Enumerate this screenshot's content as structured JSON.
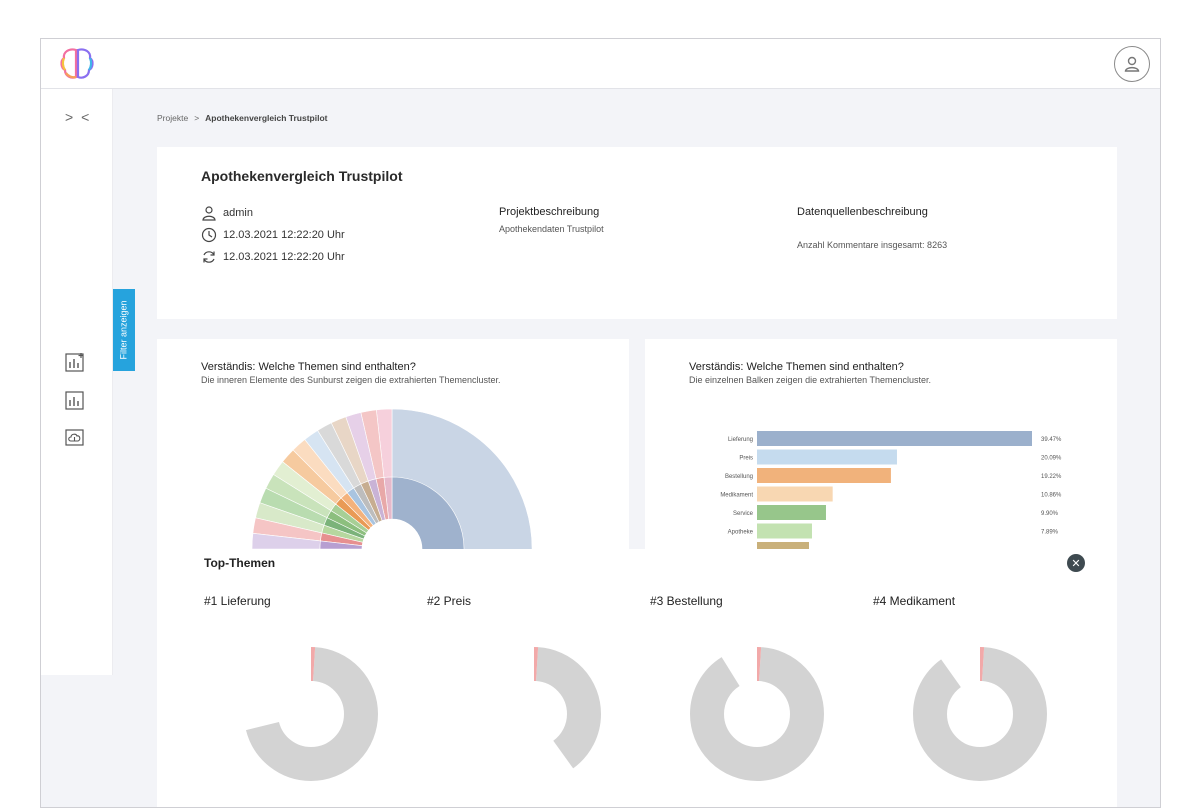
{
  "sidebar": {
    "collapse_label": "> <",
    "filter_label": "Filter anzeigen",
    "icons": [
      "chart-add-icon",
      "chart-icon",
      "cloud-upload-icon"
    ]
  },
  "breadcrumb": {
    "root": "Projekte",
    "separator": ">",
    "current": "Apothekenvergleich Trustpilot"
  },
  "project": {
    "title": "Apothekenvergleich Trustpilot",
    "user": "admin",
    "created": "12.03.2021 12:22:20 Uhr",
    "updated": "12.03.2021 12:22:20 Uhr",
    "desc_heading": "Projektbeschreibung",
    "desc_text": "Apothekendaten Trustpilot",
    "source_heading": "Datenquellenbeschreibung",
    "source_text": "Anzahl Kommentare insgesamt: 8263"
  },
  "sunburst_card": {
    "title": "Verständis: Welche Themen sind enthalten?",
    "subtitle": "Die inneren Elemente des Sunburst zeigen die extrahierten Themencluster."
  },
  "bar_card": {
    "title": "Verständis: Welche Themen sind enthalten?",
    "subtitle": "Die einzelnen Balken zeigen die extrahierten Themencluster."
  },
  "chart_data": [
    {
      "type": "bar",
      "orientation": "horizontal",
      "categories": [
        "Lieferung",
        "Preis",
        "Bestellung",
        "Medikament",
        "Service",
        "Apotheke"
      ],
      "values": [
        39.47,
        20.09,
        19.22,
        10.86,
        9.9,
        7.89
      ],
      "value_labels": [
        "39.47%",
        "20.09%",
        "19.22%",
        "10.86%",
        "9.90%",
        "7.89%"
      ],
      "colors": [
        "#9bb0cc",
        "#c5dbee",
        "#f1b27b",
        "#f8d7b2",
        "#97c68b",
        "#c3e2b1"
      ],
      "xlim": [
        0,
        39.47
      ]
    },
    {
      "type": "pie",
      "title": "#1 Lieferung",
      "values": [
        29,
        70,
        1
      ],
      "colors": [
        "#9bcd8d",
        "#d3d3d3",
        "#f2a9a9"
      ]
    },
    {
      "type": "pie",
      "title": "#2 Preis",
      "values": [
        60,
        39,
        1
      ],
      "colors": [
        "#9bcd8d",
        "#d3d3d3",
        "#f2a9a9"
      ]
    },
    {
      "type": "pie",
      "title": "#3 Bestellung",
      "values": [
        9,
        90,
        1
      ],
      "colors": [
        "#9bcd8d",
        "#d3d3d3",
        "#f2a9a9"
      ]
    },
    {
      "type": "pie",
      "title": "#4 Medikament",
      "values": [
        10,
        89,
        1
      ],
      "colors": [
        "#9bcd8d",
        "#d3d3d3",
        "#f2a9a9"
      ]
    }
  ],
  "top_themes": {
    "title": "Top-Themen",
    "close_icon": "close-icon",
    "items": [
      "#1 Lieferung",
      "#2 Preis",
      "#3 Bestellung",
      "#4 Medikament"
    ]
  }
}
